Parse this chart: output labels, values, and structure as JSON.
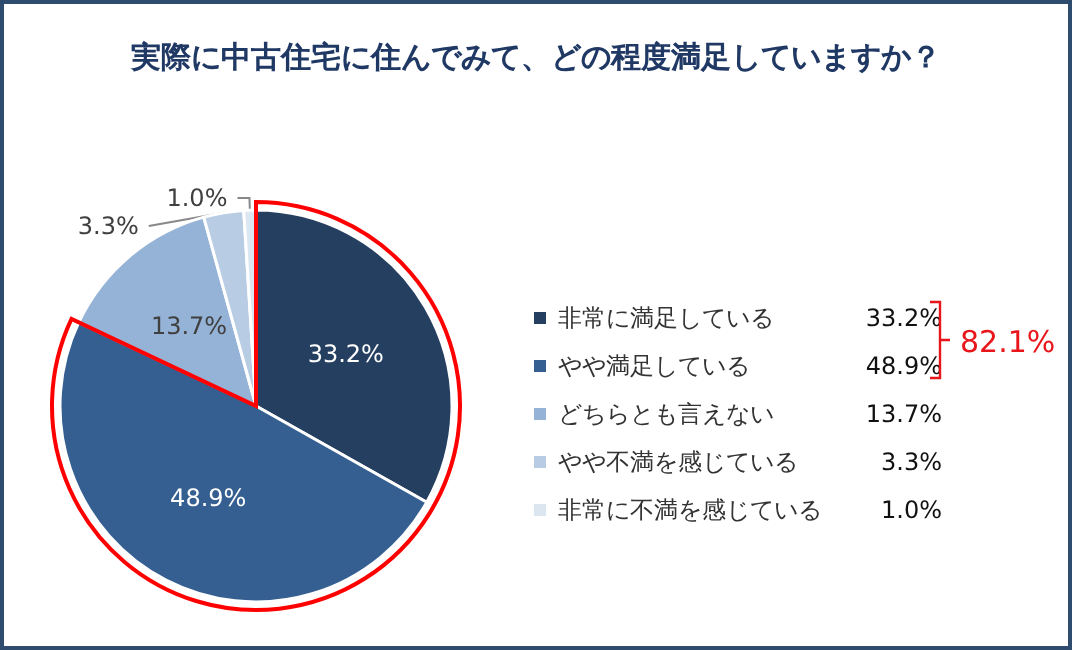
{
  "chart_data": {
    "type": "pie",
    "title": "実際に中古住宅に住んでみて、どの程度満足していますか？",
    "categories": [
      "非常に満足している",
      "やや満足している",
      "どちらとも言えない",
      "やや不満を感じている",
      "非常に不満を感じている"
    ],
    "values": [
      33.2,
      48.9,
      13.7,
      3.3,
      1.0
    ],
    "value_labels": [
      "33.2%",
      "48.9%",
      "13.7%",
      "3.3%",
      "1.0%"
    ],
    "colors": [
      "#243f60",
      "#355f91",
      "#95b3d7",
      "#b8cce4",
      "#dce6f1"
    ],
    "legend": "right",
    "annotations": [
      "82.1%"
    ]
  }
}
